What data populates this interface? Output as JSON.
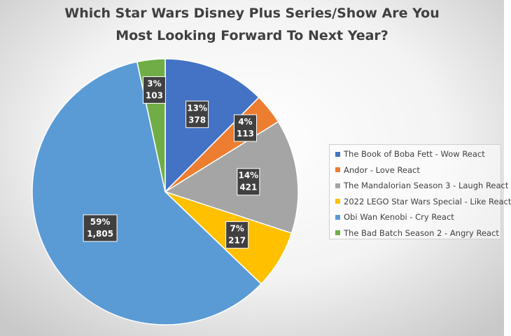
{
  "chart_data": {
    "type": "pie",
    "title": "Which Star Wars Disney Plus Series/Show Are You Most Looking Forward To Next Year?",
    "title_lines": [
      "Which Star Wars Disney Plus Series/Show Are You",
      "Most Looking Forward To Next Year?"
    ],
    "start_angle_deg": 0,
    "direction": "clockwise",
    "legend_position": "right",
    "slices": [
      {
        "label": "The Book of Boba Fett - Wow React",
        "value": 378,
        "value_label": "378",
        "percent": "13%",
        "color": "#4472C4"
      },
      {
        "label": "Andor - Love React",
        "value": 113,
        "value_label": "113",
        "percent": "4%",
        "color": "#ED7D31"
      },
      {
        "label": "The Mandalorian Season 3 - Laugh React",
        "value": 421,
        "value_label": "421",
        "percent": "14%",
        "color": "#A5A5A5"
      },
      {
        "label": "2022 LEGO Star Wars Special - Like React",
        "value": 217,
        "value_label": "217",
        "percent": "7%",
        "color": "#FFC000"
      },
      {
        "label": "Obi Wan Kenobi - Cry React",
        "value": 1805,
        "value_label": "1,805",
        "percent": "59%",
        "color": "#5B9BD5"
      },
      {
        "label": "The Bad Batch Season 2 - Angry React",
        "value": 103,
        "value_label": "103",
        "percent": "3%",
        "color": "#70AD47"
      }
    ]
  }
}
